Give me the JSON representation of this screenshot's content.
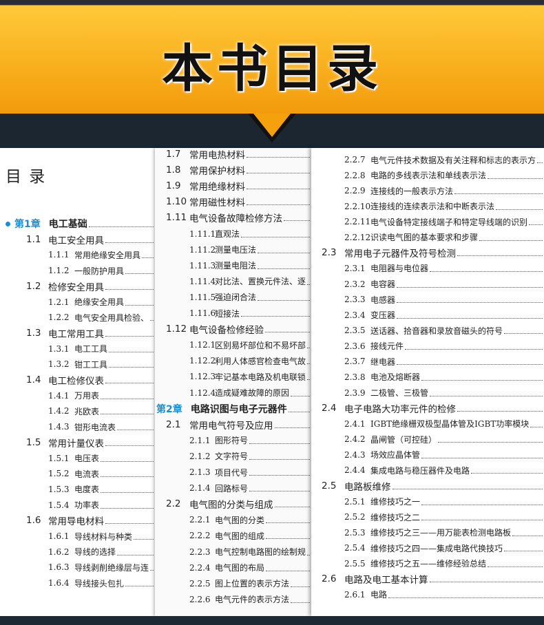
{
  "banner": {
    "title": "本书目录"
  },
  "pages": [
    {
      "heading": "目 录",
      "entries": [
        {
          "number": "第1章",
          "title": "电工基础"
        },
        {
          "number": "1.1",
          "title": "电工安全用具"
        },
        {
          "number": "1.1.1",
          "title": "常用绝缘安全用具"
        },
        {
          "number": "1.1.2",
          "title": "一般防护用具"
        },
        {
          "number": "1.2",
          "title": "检修安全用具"
        },
        {
          "number": "1.2.1",
          "title": "绝缘安全用具"
        },
        {
          "number": "1.2.2",
          "title": "电气安全用具检验、"
        },
        {
          "number": "1.3",
          "title": "电工常用工具"
        },
        {
          "number": "1.3.1",
          "title": "电工工具"
        },
        {
          "number": "1.3.2",
          "title": "钳工工具"
        },
        {
          "number": "1.4",
          "title": "电工检修仪表"
        },
        {
          "number": "1.4.1",
          "title": "万用表"
        },
        {
          "number": "1.4.2",
          "title": "兆欧表"
        },
        {
          "number": "1.4.3",
          "title": "钳形电流表"
        },
        {
          "number": "1.5",
          "title": "常用计量仪表"
        },
        {
          "number": "1.5.1",
          "title": "电压表"
        },
        {
          "number": "1.5.2",
          "title": "电流表"
        },
        {
          "number": "1.5.3",
          "title": "电度表"
        },
        {
          "number": "1.5.4",
          "title": "功率表"
        },
        {
          "number": "1.6",
          "title": "常用导电材料"
        },
        {
          "number": "1.6.1",
          "title": "导线材料与种类"
        },
        {
          "number": "1.6.2",
          "title": "导线的选择"
        },
        {
          "number": "1.6.3",
          "title": "导线剥削绝缘层与连"
        },
        {
          "number": "1.6.4",
          "title": "导线接头包扎"
        }
      ]
    },
    {
      "entries": [
        {
          "number": "1.7",
          "title": "常用电热材料"
        },
        {
          "number": "1.8",
          "title": "常用保护材料"
        },
        {
          "number": "1.9",
          "title": "常用绝缘材料"
        },
        {
          "number": "1.10",
          "title": "常用磁性材料"
        },
        {
          "number": "1.11",
          "title": "电气设备故障检修方法"
        },
        {
          "number": "1.11.1",
          "title": "直观法"
        },
        {
          "number": "1.11.2",
          "title": "测量电压法"
        },
        {
          "number": "1.11.3",
          "title": "测量电阻法"
        },
        {
          "number": "1.11.4",
          "title": "对比法、置换元件法、逐"
        },
        {
          "number": "1.11.5",
          "title": "强迫闭合法"
        },
        {
          "number": "1.11.6",
          "title": "短接法"
        },
        {
          "number": "1.12",
          "title": "电气设备检修经验"
        },
        {
          "number": "1.12.1",
          "title": "区别易坏部位和不易坏部"
        },
        {
          "number": "1.12.2",
          "title": "利用人体感官检查电气故"
        },
        {
          "number": "1.12.3",
          "title": "牢记基本电路及机电联锁"
        },
        {
          "number": "1.12.4",
          "title": "造成疑难故障的原因"
        },
        {
          "number": "第2章",
          "title": "电路识图与电子元器件"
        },
        {
          "number": "2.1",
          "title": "常用电气符号及应用"
        },
        {
          "number": "2.1.1",
          "title": "图形符号"
        },
        {
          "number": "2.1.2",
          "title": "文字符号"
        },
        {
          "number": "2.1.3",
          "title": "项目代号"
        },
        {
          "number": "2.1.4",
          "title": "回路标号"
        },
        {
          "number": "2.2",
          "title": "电气图的分类与组成"
        },
        {
          "number": "2.2.1",
          "title": "电气图的分类"
        },
        {
          "number": "2.2.2",
          "title": "电气图的组成"
        },
        {
          "number": "2.2.3",
          "title": "电气控制电路图的绘制规"
        },
        {
          "number": "2.2.4",
          "title": "电气图的布局"
        },
        {
          "number": "2.2.5",
          "title": "图上位置的表示方法"
        },
        {
          "number": "2.2.6",
          "title": "电气元件的表示方法"
        }
      ]
    },
    {
      "entries": [
        {
          "number": "2.2.7",
          "title": "电气元件技术数据及有关注释和标志的表示方"
        },
        {
          "number": "2.2.8",
          "title": "电路的多线表示法和单线表示法"
        },
        {
          "number": "2.2.9",
          "title": "连接线的一般表示方法"
        },
        {
          "number": "2.2.10",
          "title": "连接线的连续表示法和中断表示法"
        },
        {
          "number": "2.2.11",
          "title": "电气设备特定接线端子和特定导线端的识别"
        },
        {
          "number": "2.2.12",
          "title": "识读电气图的基本要求和步骤"
        },
        {
          "number": "2.3",
          "title": "常用电子元器件及符号检测"
        },
        {
          "number": "2.3.1",
          "title": "电阻器与电位器"
        },
        {
          "number": "2.3.2",
          "title": "电容器"
        },
        {
          "number": "2.3.3",
          "title": "电感器"
        },
        {
          "number": "2.3.4",
          "title": "变压器"
        },
        {
          "number": "2.3.5",
          "title": "送话器、拾音器和录放音磁头的符号"
        },
        {
          "number": "2.3.6",
          "title": "接线元件"
        },
        {
          "number": "2.3.7",
          "title": "继电器"
        },
        {
          "number": "2.3.8",
          "title": "电池及熔断器"
        },
        {
          "number": "2.3.9",
          "title": "二极管、三极管"
        },
        {
          "number": "2.4",
          "title": "电子电路大功率元件的检修"
        },
        {
          "number": "2.4.1",
          "title": "IGBT绝缘栅双极型晶体管及IGBT功率模块"
        },
        {
          "number": "2.4.2",
          "title": "晶闸管（可控硅）"
        },
        {
          "number": "2.4.3",
          "title": "场效应晶体管"
        },
        {
          "number": "2.4.4",
          "title": "集成电路与稳压器件及电路"
        },
        {
          "number": "2.5",
          "title": "电路板维修"
        },
        {
          "number": "2.5.1",
          "title": "维修技巧之一"
        },
        {
          "number": "2.5.2",
          "title": "维修技巧之二"
        },
        {
          "number": "2.5.3",
          "title": "维修技巧之三——用万能表检测电路板"
        },
        {
          "number": "2.5.4",
          "title": "维修技巧之四——集成电路代换技巧"
        },
        {
          "number": "2.5.5",
          "title": "维修技巧之五——维修经验总结"
        },
        {
          "number": "2.6",
          "title": "电路及电工基本计算"
        },
        {
          "number": "2.6.1",
          "title": "电路"
        }
      ]
    }
  ]
}
